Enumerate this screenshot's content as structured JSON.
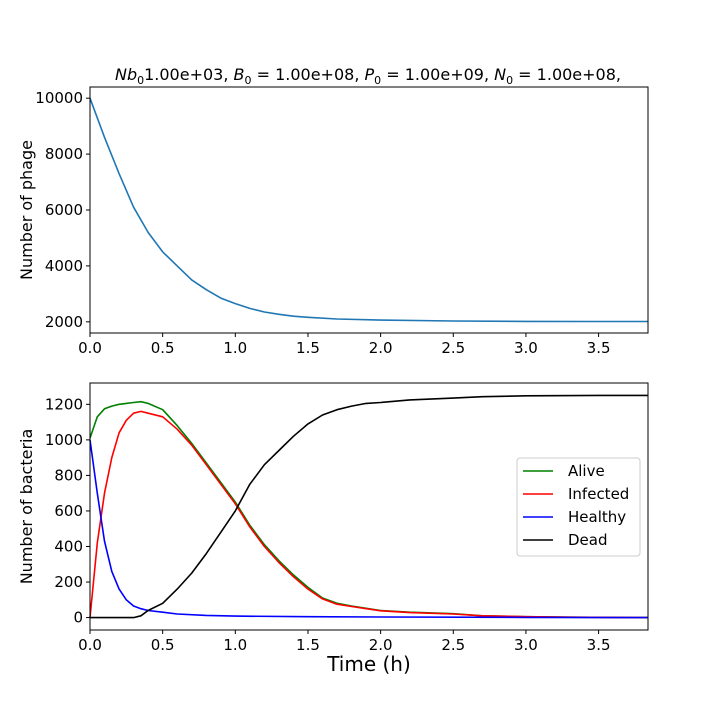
{
  "figure": {
    "title_parts": {
      "p1_main": "Nb",
      "p1_sub": "0",
      "p1_value": "1.00e+03, ",
      "p2_main": "B",
      "p2_sub": "0",
      "p2_value": " = 1.00e+08, ",
      "p3_main": "P",
      "p3_sub": "0",
      "p3_value": " = 1.00e+09, ",
      "p4_main": "N",
      "p4_sub": "0",
      "p4_value": " = 1.00e+08,"
    }
  },
  "chart_data": [
    {
      "type": "line",
      "title": "Nb0 1.00e+03, B0 = 1.00e+08, P0 = 1.00e+09, N0 = 1.00e+08,",
      "xlabel": "",
      "ylabel": "Number of phage",
      "xlim": [
        0,
        3.84
      ],
      "ylim": [
        1600,
        10400
      ],
      "xticks": [
        0,
        0.5,
        1.0,
        1.5,
        2.0,
        2.5,
        3.0,
        3.5
      ],
      "xtick_labels": [
        "0.0",
        "0.5",
        "1.0",
        "1.5",
        "2.0",
        "2.5",
        "3.0",
        "3.5"
      ],
      "yticks": [
        2000,
        4000,
        6000,
        8000,
        10000
      ],
      "ytick_labels": [
        "2000",
        "4000",
        "6000",
        "8000",
        "10000"
      ],
      "grid": false,
      "series": [
        {
          "color": "#1f77b4",
          "x": [
            0,
            0.1,
            0.2,
            0.3,
            0.4,
            0.5,
            0.6,
            0.7,
            0.8,
            0.9,
            1.0,
            1.1,
            1.2,
            1.3,
            1.4,
            1.5,
            1.7,
            2.0,
            2.5,
            3.0,
            3.5,
            3.84
          ],
          "y": [
            10000,
            8600,
            7300,
            6100,
            5200,
            4500,
            4000,
            3500,
            3150,
            2850,
            2650,
            2480,
            2350,
            2270,
            2200,
            2160,
            2100,
            2060,
            2030,
            2015,
            2010,
            2010
          ]
        }
      ]
    },
    {
      "type": "line",
      "title": "",
      "xlabel": "Time (h)",
      "ylabel": "Number of bacteria",
      "xlim": [
        0,
        3.84
      ],
      "ylim": [
        -70,
        1320
      ],
      "xticks": [
        0,
        0.5,
        1.0,
        1.5,
        2.0,
        2.5,
        3.0,
        3.5
      ],
      "xtick_labels": [
        "0.0",
        "0.5",
        "1.0",
        "1.5",
        "2.0",
        "2.5",
        "3.0",
        "3.5"
      ],
      "yticks": [
        0,
        200,
        400,
        600,
        800,
        1000,
        1200
      ],
      "ytick_labels": [
        "0",
        "200",
        "400",
        "600",
        "800",
        "1000",
        "1200"
      ],
      "grid": false,
      "legend_position": "right",
      "series": [
        {
          "name": "Alive",
          "color": "#008000",
          "x": [
            0,
            0.05,
            0.1,
            0.15,
            0.2,
            0.25,
            0.3,
            0.35,
            0.4,
            0.5,
            0.6,
            0.7,
            0.8,
            0.9,
            1.0,
            1.1,
            1.2,
            1.3,
            1.4,
            1.5,
            1.6,
            1.7,
            1.8,
            2.0,
            2.2,
            2.5,
            2.7,
            3.0,
            3.3,
            3.84
          ],
          "y": [
            1010,
            1130,
            1175,
            1190,
            1200,
            1205,
            1210,
            1215,
            1205,
            1170,
            1080,
            980,
            870,
            760,
            650,
            520,
            410,
            320,
            240,
            170,
            110,
            80,
            65,
            40,
            30,
            22,
            10,
            5,
            2,
            0
          ]
        },
        {
          "name": "Infected",
          "color": "#ff0000",
          "x": [
            0,
            0.05,
            0.1,
            0.15,
            0.2,
            0.25,
            0.3,
            0.35,
            0.4,
            0.5,
            0.6,
            0.7,
            0.8,
            0.9,
            1.0,
            1.1,
            1.2,
            1.3,
            1.4,
            1.5,
            1.6,
            1.7,
            1.8,
            2.0,
            2.2,
            2.5,
            2.7,
            3.0,
            3.3,
            3.84
          ],
          "y": [
            0,
            420,
            700,
            900,
            1040,
            1110,
            1150,
            1160,
            1150,
            1130,
            1060,
            970,
            860,
            750,
            640,
            510,
            400,
            310,
            230,
            160,
            105,
            75,
            62,
            38,
            28,
            20,
            10,
            5,
            2,
            0
          ]
        },
        {
          "name": "Healthy",
          "color": "#0000ff",
          "x": [
            0,
            0.05,
            0.1,
            0.15,
            0.2,
            0.25,
            0.3,
            0.35,
            0.4,
            0.5,
            0.6,
            0.8,
            1.0,
            1.5,
            2.0,
            3.0,
            3.84
          ],
          "y": [
            1000,
            700,
            430,
            260,
            160,
            100,
            65,
            50,
            40,
            30,
            20,
            12,
            8,
            5,
            3,
            1,
            0
          ]
        },
        {
          "name": "Dead",
          "color": "#000000",
          "x": [
            0,
            0.2,
            0.3,
            0.35,
            0.4,
            0.5,
            0.6,
            0.7,
            0.8,
            0.9,
            1.0,
            1.1,
            1.2,
            1.3,
            1.4,
            1.5,
            1.6,
            1.7,
            1.8,
            1.9,
            2.0,
            2.2,
            2.5,
            2.7,
            3.0,
            3.5,
            3.84
          ],
          "y": [
            0,
            0,
            0,
            10,
            40,
            80,
            160,
            250,
            360,
            480,
            600,
            750,
            860,
            940,
            1020,
            1090,
            1140,
            1170,
            1190,
            1205,
            1210,
            1225,
            1235,
            1243,
            1248,
            1250,
            1250
          ]
        }
      ]
    }
  ]
}
